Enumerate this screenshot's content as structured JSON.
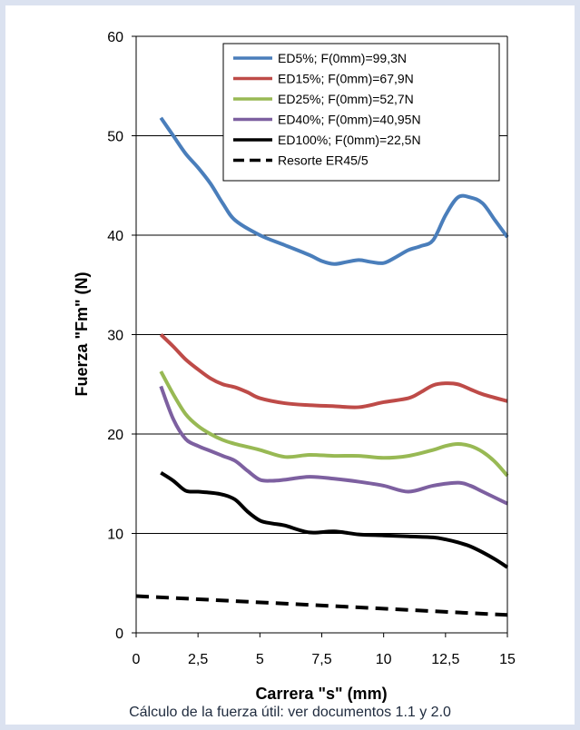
{
  "chart_data": {
    "type": "line",
    "xlabel": "Carrera \"s\" (mm)",
    "ylabel": "Fuerza \"Fm\" (N)",
    "xlim": [
      0,
      15
    ],
    "ylim": [
      0,
      60
    ],
    "x_ticks": [
      "0",
      "2,5",
      "5",
      "7,5",
      "10",
      "12,5",
      "15"
    ],
    "y_ticks": [
      "0",
      "10",
      "20",
      "30",
      "40",
      "50",
      "60"
    ],
    "grid": "horizontal",
    "legend_position": "top-right",
    "series": [
      {
        "name": "ED5%; F(0mm)=99,3N",
        "color": "#4a7ebb",
        "dash": "solid",
        "x": [
          1,
          1.5,
          2,
          2.5,
          3,
          3.5,
          4,
          5,
          6,
          7,
          7.5,
          8,
          8.5,
          9,
          9.5,
          10,
          10.5,
          11,
          11.5,
          12,
          12.5,
          13,
          13.5,
          14,
          14.5,
          15
        ],
        "y": [
          51.8,
          50,
          48.2,
          46.8,
          45.2,
          43.2,
          41.5,
          40,
          39,
          38,
          37.4,
          37.1,
          37.3,
          37.5,
          37.3,
          37.2,
          37.8,
          38.5,
          38.9,
          39.5,
          42,
          43.8,
          43.8,
          43.2,
          41.5,
          39.8
        ]
      },
      {
        "name": "ED15%; F(0mm)=67,9N",
        "color": "#be4b48",
        "dash": "solid",
        "x": [
          1,
          1.5,
          2,
          2.5,
          3,
          3.5,
          4,
          4.5,
          5,
          6,
          7,
          8,
          9,
          10,
          11,
          11.5,
          12,
          12.5,
          13,
          13.5,
          14,
          15
        ],
        "y": [
          30,
          28.8,
          27.5,
          26.5,
          25.6,
          25,
          24.7,
          24.2,
          23.6,
          23.1,
          22.9,
          22.8,
          22.7,
          23.2,
          23.6,
          24.2,
          24.9,
          25.1,
          25,
          24.5,
          24,
          23.3
        ]
      },
      {
        "name": "ED25%; F(0mm)=52,7N",
        "color": "#98b954",
        "dash": "solid",
        "x": [
          1,
          1.5,
          2,
          2.5,
          3,
          3.5,
          4,
          5,
          6,
          7,
          8,
          9,
          10,
          11,
          12,
          12.5,
          13,
          13.5,
          14,
          14.5,
          15
        ],
        "y": [
          26.3,
          24,
          22,
          20.8,
          20,
          19.4,
          19,
          18.4,
          17.7,
          17.9,
          17.8,
          17.8,
          17.6,
          17.8,
          18.4,
          18.8,
          19,
          18.8,
          18.2,
          17.2,
          15.8
        ]
      },
      {
        "name": "ED40%; F(0mm)=40,95N",
        "color": "#7d60a0",
        "dash": "solid",
        "x": [
          1,
          1.5,
          2,
          2.5,
          3,
          3.5,
          4,
          4.5,
          5,
          5.5,
          6,
          7,
          8,
          9,
          10,
          11,
          12,
          13,
          13.5,
          14,
          15
        ],
        "y": [
          24.8,
          21.5,
          19.5,
          18.8,
          18.3,
          17.8,
          17.3,
          16.3,
          15.4,
          15.3,
          15.4,
          15.7,
          15.5,
          15.2,
          14.8,
          14.2,
          14.8,
          15.1,
          14.8,
          14.2,
          13
        ]
      },
      {
        "name": "ED100%; F(0mm)=22,5N",
        "color": "#000000",
        "dash": "solid",
        "x": [
          1,
          1.5,
          2,
          2.5,
          3,
          3.5,
          4,
          4.5,
          5,
          5.5,
          6,
          7,
          8,
          9,
          10,
          11,
          12,
          12.5,
          13,
          13.5,
          14,
          14.5,
          15
        ],
        "y": [
          16.1,
          15.3,
          14.3,
          14.2,
          14.1,
          13.9,
          13.4,
          12.2,
          11.3,
          11,
          10.8,
          10.1,
          10.2,
          9.9,
          9.8,
          9.7,
          9.6,
          9.4,
          9.1,
          8.7,
          8.1,
          7.4,
          6.6
        ]
      },
      {
        "name": "Resorte ER45/5",
        "color": "#000000",
        "dash": "dashed",
        "x": [
          0,
          15
        ],
        "y": [
          3.7,
          1.8
        ]
      }
    ]
  },
  "caption": "Cálculo de la fuerza útil: ver documentos 1.1 y 2.0"
}
